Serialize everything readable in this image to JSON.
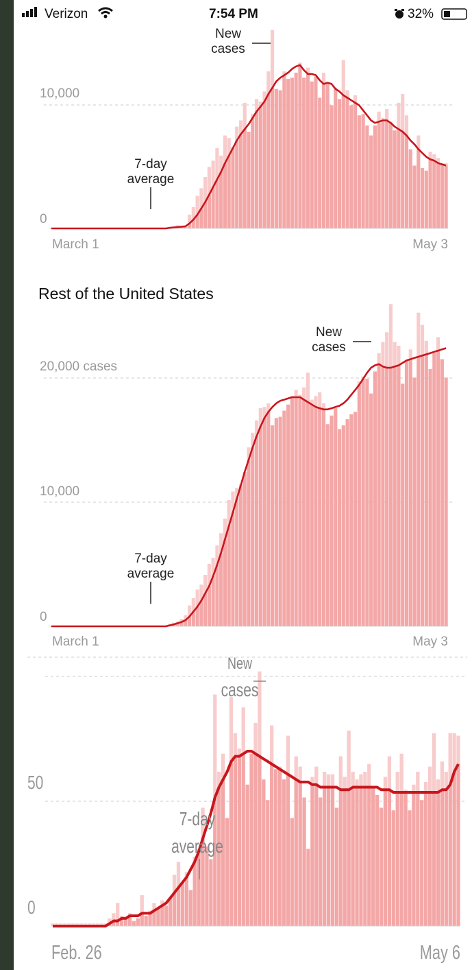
{
  "status_bar": {
    "carrier": "Verizon",
    "time": "7:54 PM",
    "battery": "32%",
    "icons": [
      "signal-bars-icon",
      "wifi-icon",
      "alarm-icon",
      "battery-icon"
    ]
  },
  "colors": {
    "bar": "#f4a7a7",
    "bar_light": "#f8cccc",
    "line": "#c8161d",
    "grid": "#cccccc",
    "axis_text": "#9a9a9a"
  },
  "chart_data": [
    {
      "type": "bar",
      "title": "",
      "tick_labels": {
        "y": [
          "0",
          "10,000"
        ],
        "x": [
          "March 1",
          "May 3"
        ]
      },
      "ylim": [
        0,
        16000
      ],
      "annotations": {
        "bars": "New cases",
        "line_top": "7-day",
        "line_bottom": "average"
      },
      "series": [
        {
          "name": "New cases",
          "values": [
            0,
            0,
            0,
            0,
            0,
            0,
            0,
            0,
            0,
            0,
            0,
            0,
            0,
            0,
            0,
            0,
            0,
            0,
            0,
            0,
            0,
            0,
            0,
            0,
            0,
            0,
            0,
            0,
            0,
            0,
            100,
            150,
            250,
            150,
            100,
            1100,
            1700,
            2600,
            3200,
            4100,
            4900,
            5400,
            6400,
            5800,
            7400,
            7200,
            6500,
            8100,
            8600,
            10000,
            7700,
            9100,
            10300,
            10100,
            10900,
            12500,
            15800,
            11100,
            11000,
            12500,
            11900,
            12000,
            12400,
            13200,
            12000,
            12800,
            11700,
            12100,
            10400,
            12400,
            11500,
            9800,
            11200,
            10300,
            13400,
            11000,
            9800,
            10600,
            9000,
            9100,
            8200,
            7400,
            8200,
            9300,
            8800,
            9500,
            8500,
            7800,
            10000,
            10700,
            9000,
            6300,
            5000,
            7400,
            4800,
            4600,
            6100,
            5900,
            5600,
            5200,
            5200
          ]
        },
        {
          "name": "7-day average",
          "values": [
            0,
            0,
            0,
            0,
            0,
            0,
            0,
            0,
            0,
            0,
            0,
            0,
            0,
            0,
            0,
            0,
            0,
            0,
            0,
            0,
            0,
            0,
            0,
            0,
            0,
            0,
            0,
            0,
            0,
            0,
            50,
            80,
            110,
            140,
            170,
            400,
            700,
            1100,
            1600,
            2100,
            2700,
            3300,
            3900,
            4500,
            5200,
            5800,
            6400,
            7000,
            7500,
            7900,
            8300,
            8800,
            9300,
            9700,
            10100,
            10700,
            11200,
            11700,
            12000,
            12200,
            12400,
            12700,
            12900,
            13000,
            12600,
            12300,
            12300,
            12200,
            11800,
            11500,
            11600,
            11500,
            11100,
            10900,
            10600,
            10400,
            10200,
            10000,
            9800,
            9400,
            9000,
            8600,
            8400,
            8500,
            8600,
            8600,
            8400,
            8100,
            7900,
            7700,
            7400,
            7000,
            6700,
            6300,
            6000,
            5700,
            5500,
            5400,
            5200,
            5100,
            5000
          ]
        }
      ]
    },
    {
      "type": "bar",
      "title": "Rest of the United States",
      "tick_labels": {
        "y": [
          "0",
          "10,000",
          "20,000 cases"
        ],
        "x": [
          "March 1",
          "May 3"
        ]
      },
      "ylim": [
        0,
        29000
      ],
      "annotations": {
        "bars": "New cases",
        "line_top": "7-day",
        "line_bottom": "average"
      },
      "series": [
        {
          "name": "New cases",
          "values": [
            0,
            0,
            0,
            0,
            0,
            0,
            0,
            0,
            0,
            0,
            0,
            0,
            0,
            0,
            0,
            0,
            0,
            0,
            0,
            0,
            0,
            0,
            0,
            0,
            0,
            0,
            0,
            0,
            0,
            0,
            200,
            300,
            400,
            600,
            900,
            1700,
            2300,
            3000,
            3400,
            4200,
            5100,
            5600,
            6600,
            7600,
            8800,
            10300,
            11000,
            11300,
            11600,
            12600,
            14600,
            15800,
            16800,
            17800,
            17900,
            18200,
            16400,
            17000,
            17100,
            17600,
            18100,
            18800,
            19300,
            18900,
            19500,
            20700,
            18500,
            18800,
            19100,
            18200,
            16500,
            17200,
            17800,
            16100,
            16400,
            16900,
            17300,
            17500,
            20000,
            20400,
            20200,
            19000,
            20800,
            22300,
            23200,
            24000,
            26300,
            23200,
            22900,
            19800,
            21700,
            22600,
            20300,
            25600,
            24600,
            23300,
            21000,
            22300,
            23600,
            21800,
            20300
          ]
        },
        {
          "name": "7-day average",
          "values": [
            0,
            0,
            0,
            0,
            0,
            0,
            0,
            0,
            0,
            0,
            0,
            0,
            0,
            0,
            0,
            0,
            0,
            0,
            0,
            0,
            0,
            0,
            0,
            0,
            0,
            0,
            0,
            0,
            0,
            0,
            80,
            150,
            250,
            350,
            500,
            800,
            1200,
            1600,
            2100,
            2700,
            3300,
            4100,
            5000,
            6000,
            7100,
            8200,
            9300,
            10400,
            11500,
            12600,
            13600,
            14600,
            15500,
            16300,
            17000,
            17500,
            17900,
            18200,
            18400,
            18500,
            18600,
            18700,
            18700,
            18700,
            18500,
            18300,
            18100,
            17900,
            17800,
            17700,
            17700,
            17800,
            17900,
            18000,
            18200,
            18500,
            18900,
            19300,
            19700,
            20200,
            20700,
            21100,
            21300,
            21400,
            21200,
            21100,
            21100,
            21200,
            21300,
            21500,
            21700,
            21800,
            21900,
            22000,
            22100,
            22200,
            22300,
            22400,
            22500,
            22600,
            22700
          ]
        }
      ]
    },
    {
      "type": "bar",
      "title": "",
      "tick_labels": {
        "y": [
          "0",
          "50"
        ],
        "x": [
          "Feb. 26",
          "May 6"
        ]
      },
      "ylim": [
        0,
        100
      ],
      "annotations": {
        "bars_top": "New",
        "bars": "cases",
        "line_top": "7-day",
        "line_bottom": "average"
      },
      "series": [
        {
          "name": "New cases",
          "values": [
            1,
            1,
            1,
            1,
            1,
            1,
            1,
            1,
            1,
            1,
            1,
            1,
            1,
            1,
            3,
            5,
            9,
            4,
            3,
            5,
            2,
            3,
            12,
            4,
            6,
            9,
            7,
            10,
            8,
            11,
            20,
            25,
            17,
            21,
            14,
            27,
            30,
            46,
            31,
            26,
            90,
            60,
            67,
            42,
            89,
            75,
            69,
            85,
            55,
            67,
            79,
            99,
            57,
            49,
            78,
            61,
            62,
            57,
            74,
            42,
            66,
            62,
            50,
            30,
            58,
            62,
            50,
            60,
            59,
            59,
            46,
            66,
            58,
            76,
            60,
            57,
            59,
            60,
            63,
            54,
            51,
            46,
            58,
            66,
            45,
            60,
            67,
            53,
            45,
            55,
            60,
            49,
            56,
            62,
            75,
            57,
            64,
            60,
            75,
            75,
            74
          ]
        },
        {
          "name": "7-day average",
          "values": [
            0,
            0,
            0,
            0,
            0,
            0,
            0,
            0,
            0,
            0,
            0,
            0,
            0,
            0,
            1,
            2,
            2,
            3,
            3,
            4,
            4,
            4,
            5,
            5,
            5,
            6,
            7,
            8,
            9,
            11,
            13,
            15,
            17,
            19,
            22,
            25,
            29,
            34,
            39,
            44,
            50,
            54,
            57,
            60,
            64,
            66,
            66,
            67,
            68,
            68,
            67,
            66,
            65,
            64,
            63,
            62,
            61,
            60,
            59,
            58,
            57,
            56,
            56,
            56,
            55,
            55,
            54,
            54,
            54,
            54,
            54,
            53,
            53,
            53,
            54,
            54,
            54,
            54,
            54,
            54,
            54,
            53,
            53,
            53,
            52,
            52,
            52,
            52,
            52,
            52,
            52,
            52,
            52,
            52,
            52,
            52,
            53,
            53,
            55,
            60,
            63
          ]
        }
      ]
    }
  ]
}
